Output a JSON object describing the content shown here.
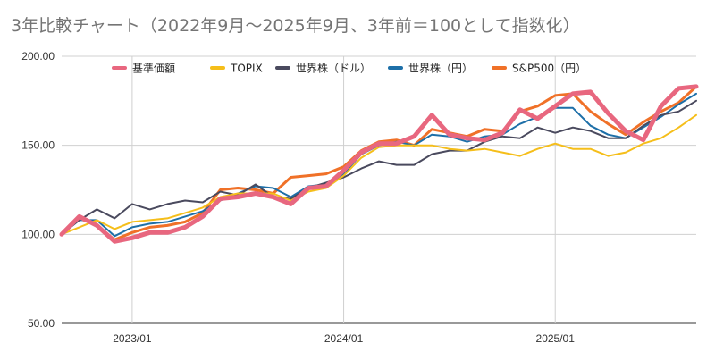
{
  "chart_data": {
    "type": "line",
    "title": "3年比較チャート（2022年9月〜2025年9月、3年前＝100として指数化）",
    "xlabel": "",
    "ylabel": "",
    "x_tick_labels": [
      "2023/01",
      "2024/01",
      "2025/01"
    ],
    "y_ticks": [
      50,
      100,
      150,
      200
    ],
    "y_tick_labels": [
      "50.00",
      "100.00",
      "150.00",
      "200.00"
    ],
    "ylim": [
      50,
      200
    ],
    "x": [
      "2022/09",
      "2022/10",
      "2022/11",
      "2022/12",
      "2023/01",
      "2023/02",
      "2023/03",
      "2023/04",
      "2023/05",
      "2023/06",
      "2023/07",
      "2023/08",
      "2023/09",
      "2023/10",
      "2023/11",
      "2023/12",
      "2024/01",
      "2024/02",
      "2024/03",
      "2024/04",
      "2024/05",
      "2024/06",
      "2024/07",
      "2024/08",
      "2024/09",
      "2024/10",
      "2024/11",
      "2024/12",
      "2025/01",
      "2025/02",
      "2025/03",
      "2025/04",
      "2025/05",
      "2025/06",
      "2025/07",
      "2025/08",
      "2025/09"
    ],
    "grid": true,
    "legend_position": "top",
    "series": [
      {
        "name": "基準価額",
        "color": "#e8677f",
        "width": 5,
        "values": [
          100,
          110,
          105,
          96,
          98,
          101,
          101,
          104,
          110,
          120,
          121,
          123,
          121,
          117,
          126,
          127,
          136,
          146,
          151,
          151,
          155,
          167,
          156,
          154,
          153,
          157,
          170,
          165,
          172,
          179,
          180,
          168,
          158,
          153,
          172,
          182,
          183
        ]
      },
      {
        "name": "TOPIX",
        "color": "#f5be1a",
        "width": 2,
        "values": [
          100,
          104,
          108,
          103,
          107,
          108,
          109,
          112,
          115,
          121,
          123,
          123,
          123,
          119,
          124,
          126,
          133,
          143,
          149,
          150,
          150,
          150,
          148,
          147,
          148,
          146,
          144,
          148,
          151,
          148,
          148,
          144,
          146,
          151,
          154,
          160,
          167
        ]
      },
      {
        "name": "世界株（ドル）",
        "color": "#4a4a5e",
        "width": 2,
        "values": [
          100,
          108,
          114,
          109,
          117,
          114,
          117,
          119,
          118,
          124,
          122,
          128,
          121,
          120,
          126,
          129,
          132,
          137,
          141,
          139,
          139,
          145,
          147,
          147,
          152,
          155,
          154,
          160,
          157,
          160,
          158,
          154,
          154,
          161,
          167,
          169,
          175
        ]
      },
      {
        "name": "世界株（円）",
        "color": "#1d6fa8",
        "width": 2,
        "values": [
          100,
          108,
          108,
          99,
          104,
          106,
          107,
          110,
          113,
          119,
          123,
          127,
          126,
          121,
          127,
          128,
          134,
          145,
          150,
          152,
          150,
          156,
          155,
          152,
          155,
          156,
          162,
          166,
          171,
          171,
          161,
          156,
          154,
          160,
          166,
          173,
          179
        ]
      },
      {
        "name": "S&P500（円）",
        "color": "#f07128",
        "width": 3,
        "values": [
          100,
          109,
          105,
          97,
          101,
          104,
          105,
          107,
          112,
          125,
          126,
          125,
          123,
          132,
          133,
          134,
          138,
          147,
          152,
          153,
          150,
          159,
          157,
          155,
          159,
          158,
          169,
          172,
          178,
          179,
          169,
          162,
          156,
          163,
          169,
          174,
          183
        ]
      }
    ]
  }
}
